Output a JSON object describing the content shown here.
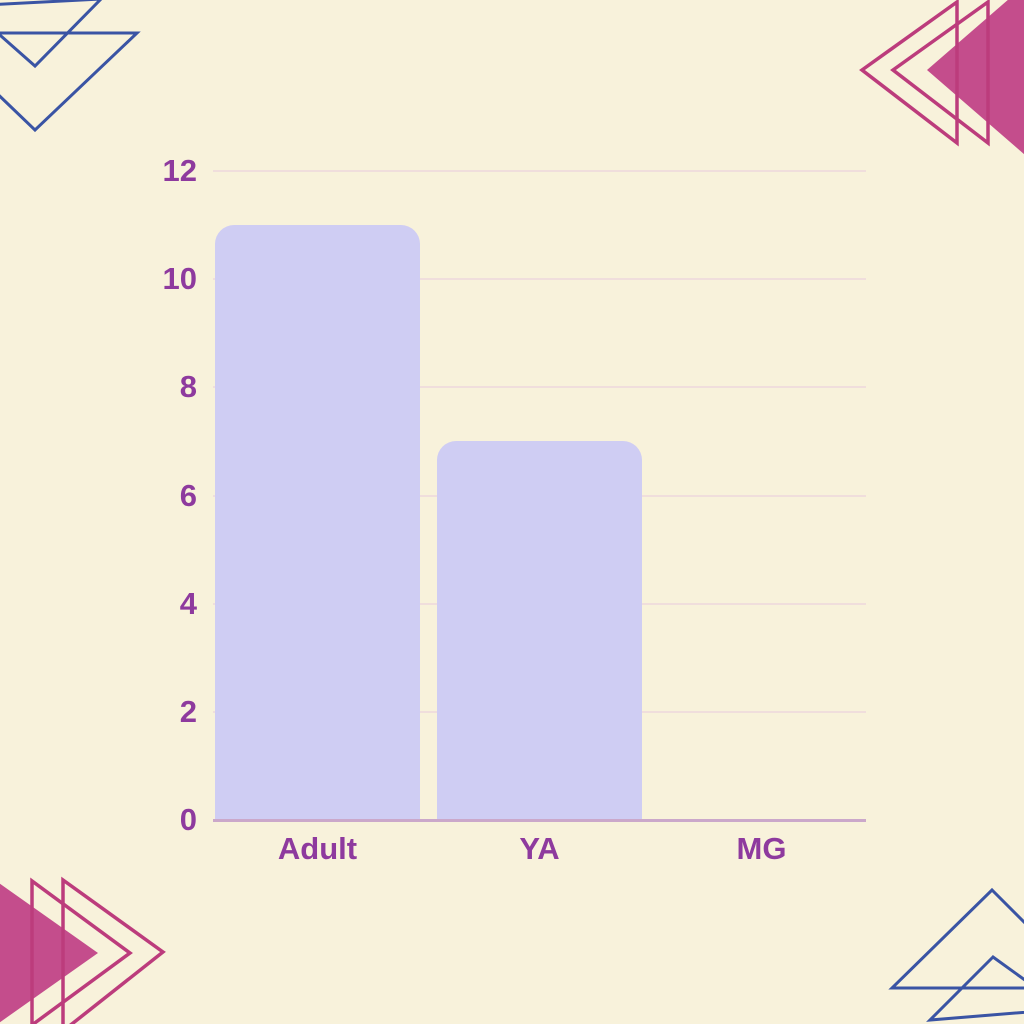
{
  "colors": {
    "background": "#f8f2db",
    "bar_fill": "#cfcdf3",
    "grid_line": "#f0dedc",
    "axis_line": "#cba8ca",
    "label_purple": "#8e3a9e",
    "triangle_blue": "#3a54a4",
    "triangle_magenta_stroke": "#bc3c7c",
    "triangle_magenta_fill": "#c44d8c"
  },
  "chart_data": {
    "type": "bar",
    "categories": [
      "Adult",
      "YA",
      "MG"
    ],
    "values": [
      11,
      7,
      0
    ],
    "title": "",
    "xlabel": "",
    "ylabel": "",
    "ylim": [
      0,
      12
    ],
    "yticks": [
      0,
      2,
      4,
      6,
      8,
      10,
      12
    ],
    "grid": true,
    "legend": "none",
    "bar_corner": "rounded-top"
  },
  "decorations": {
    "top_left": "two overlapping blue outlined triangles pointing down",
    "top_right": "solid magenta triangle pointing left with two magenta outlined triangles",
    "bottom_left": "solid magenta triangle pointing right with two magenta outlined triangles",
    "bottom_right": "two blue outlined triangles pointing up"
  }
}
